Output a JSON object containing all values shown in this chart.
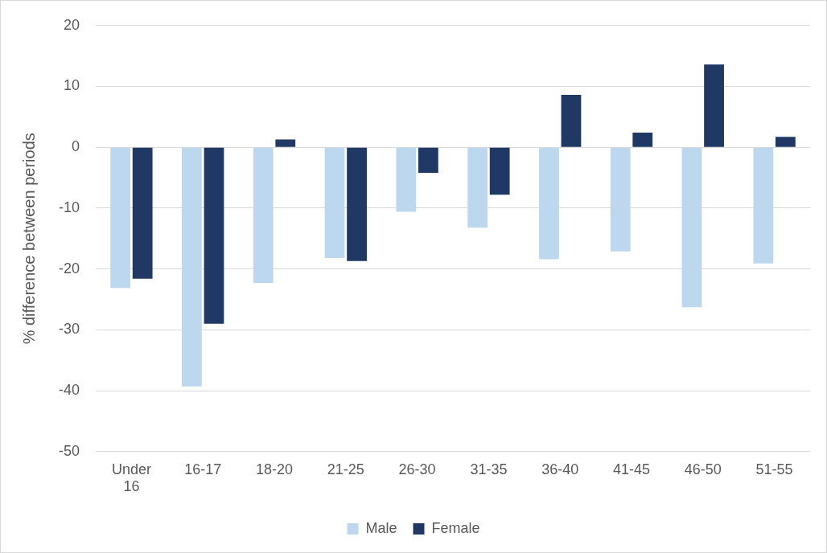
{
  "chart_data": {
    "type": "bar",
    "ylabel": "% difference between periods",
    "categories": [
      "Under 16",
      "16-17",
      "18-20",
      "21-25",
      "26-30",
      "31-35",
      "36-40",
      "41-45",
      "46-50",
      "51-55"
    ],
    "series": [
      {
        "name": "Male",
        "color": "#bdd7ee",
        "values": [
          -23.1,
          -39.3,
          -22.3,
          -18.2,
          -10.6,
          -13.2,
          -18.4,
          -17.1,
          -26.3,
          -19.1
        ]
      },
      {
        "name": "Female",
        "color": "#1f3864",
        "values": [
          -21.6,
          -29.0,
          1.3,
          -18.7,
          -4.2,
          -7.8,
          8.6,
          2.4,
          13.6,
          1.7
        ]
      }
    ],
    "ylim": [
      -50,
      20
    ],
    "yticks": [
      -50,
      -40,
      -30,
      -20,
      -10,
      0,
      10,
      20
    ],
    "grid": "y",
    "legend": "bottom"
  }
}
